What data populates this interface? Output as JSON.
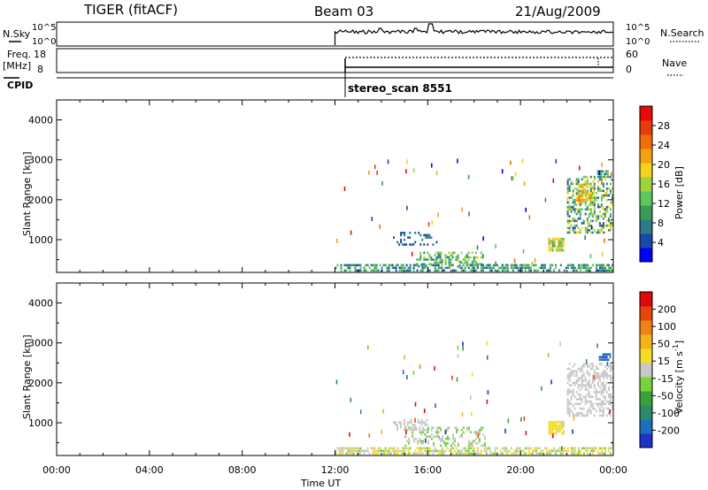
{
  "header": {
    "station": "TIGER (fitACF)",
    "beam": "Beam 03",
    "date": "21/Aug/2009"
  },
  "summary_panels": {
    "nsky_label": "N.Sky",
    "nsky_ticks": [
      "10^5",
      "10^0"
    ],
    "nsearch_label": "N.Search",
    "nsearch_ticks": [
      "10^5",
      "10^0"
    ],
    "freq_label": "Freq.",
    "freq_unit": "[MHz]",
    "freq_ticks": [
      "18",
      "8"
    ],
    "nave_label": "Nave",
    "nave_ticks": [
      "60",
      "0"
    ],
    "cpid_label": "CPID",
    "cpid_text": "stereo_scan 8551"
  },
  "colors": {
    "power": [
      "#0000ff",
      "#1a4aa8",
      "#2c7a8a",
      "#3a9a5a",
      "#5ac85a",
      "#a0d23c",
      "#f5d21e",
      "#f5a014",
      "#f06e0a",
      "#e63c0a",
      "#e60a0a"
    ],
    "velocity": [
      "#1e32c8",
      "#1e6ebe",
      "#2a8a6a",
      "#3aa03a",
      "#7ad23a",
      "#c8c8c8",
      "#f5dc28",
      "#f5b41e",
      "#f08214",
      "#e6460a",
      "#dc0a0a"
    ]
  },
  "chart_data": [
    {
      "type": "heatmap",
      "name": "power",
      "xlabel": "",
      "ylabel": "Slant Range [km]",
      "x_range_hours": [
        0,
        24
      ],
      "ylim": [
        180,
        4500
      ],
      "y_ticks": [
        "4000",
        "3000",
        "2000",
        "1000"
      ],
      "colorbar": {
        "label": "Power [dB]",
        "range": [
          0,
          32
        ],
        "ticks": [
          "28",
          "24",
          "20",
          "16",
          "12",
          "8",
          "4"
        ]
      },
      "patches": [
        {
          "t": [
            12.0,
            24.0
          ],
          "r": [
            200,
            400
          ],
          "v": [
            4,
            14
          ],
          "density": 0.6
        },
        {
          "t": [
            15.5,
            18.5
          ],
          "r": [
            300,
            700
          ],
          "v": [
            6,
            18
          ],
          "density": 0.3
        },
        {
          "t": [
            16.2,
            17.8
          ],
          "r": [
            400,
            600
          ],
          "v": [
            8,
            16
          ],
          "density": 0.35
        },
        {
          "t": [
            14.5,
            16.5
          ],
          "r": [
            850,
            1200
          ],
          "v": [
            3,
            8
          ],
          "density": 0.2
        },
        {
          "t": [
            21.2,
            21.9
          ],
          "r": [
            700,
            1050
          ],
          "v": [
            10,
            22
          ],
          "density": 0.8
        },
        {
          "t": [
            22.0,
            24.0
          ],
          "r": [
            1150,
            2600
          ],
          "v": [
            4,
            20
          ],
          "density": 0.45
        },
        {
          "t": [
            22.4,
            23.2
          ],
          "r": [
            1900,
            2400
          ],
          "v": [
            14,
            24
          ],
          "density": 0.7
        },
        {
          "t": [
            23.3,
            23.8
          ],
          "r": [
            2550,
            2750
          ],
          "v": [
            6,
            14
          ],
          "density": 0.7
        }
      ],
      "scatter_count": 55
    },
    {
      "type": "heatmap",
      "name": "velocity",
      "xlabel": "Time UT",
      "ylabel": "Slant Range [km]",
      "x_range_hours": [
        0,
        24
      ],
      "x_ticks": [
        "00:00",
        "04:00",
        "08:00",
        "12:00",
        "16:00",
        "20:00",
        "00:00"
      ],
      "ylim": [
        180,
        4500
      ],
      "y_ticks": [
        "4000",
        "3000",
        "2000",
        "1000"
      ],
      "colorbar": {
        "label": "Velocity [m s",
        "label_sup": "-1",
        "label_end": "]",
        "range": [
          -300,
          300
        ],
        "ticks": [
          "200",
          "100",
          "50",
          "15",
          "-15",
          "-50",
          "-100",
          "-200"
        ]
      },
      "patches": [
        {
          "t": [
            12.0,
            24.0
          ],
          "r": [
            200,
            400
          ],
          "v": [
            -60,
            80
          ],
          "density": 0.65
        },
        {
          "t": [
            15.0,
            18.5
          ],
          "r": [
            400,
            900
          ],
          "v": [
            -50,
            10
          ],
          "density": 0.3
        },
        {
          "t": [
            14.5,
            16.0
          ],
          "r": [
            800,
            1100
          ],
          "v": [
            -10,
            10
          ],
          "density": 0.4
        },
        {
          "t": [
            21.2,
            21.9
          ],
          "r": [
            700,
            1050
          ],
          "v": [
            20,
            80
          ],
          "density": 0.8
        },
        {
          "t": [
            22.0,
            24.0
          ],
          "r": [
            1150,
            2500
          ],
          "v": [
            -15,
            15
          ],
          "density": 0.5
        },
        {
          "t": [
            23.3,
            23.9
          ],
          "r": [
            2550,
            2750
          ],
          "v": [
            -250,
            -200
          ],
          "density": 0.8
        }
      ],
      "scatter_count": 55
    }
  ],
  "data_start_hour": 12.0
}
